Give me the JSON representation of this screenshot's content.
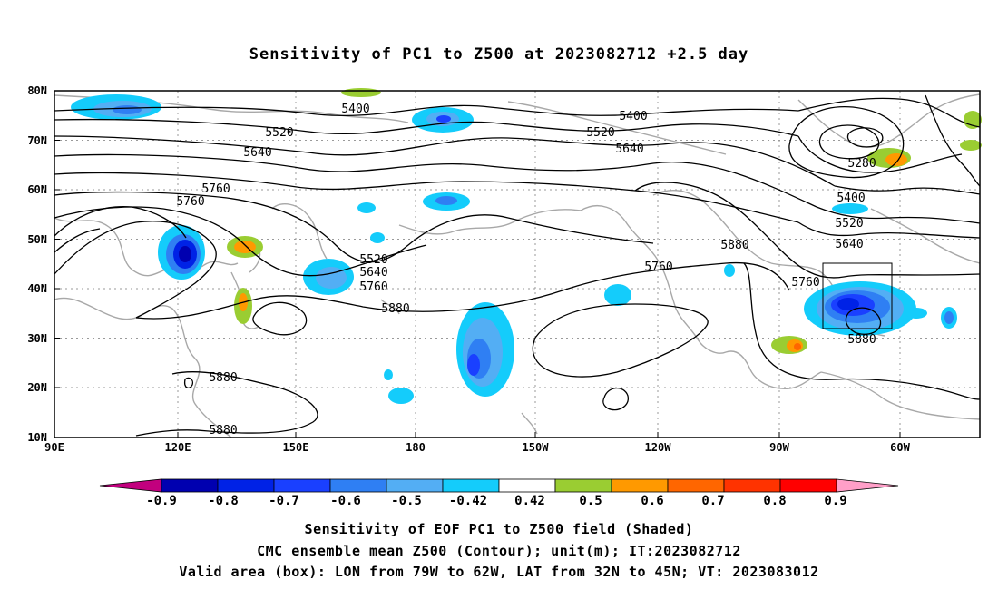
{
  "title": "Sensitivity of PC1 to Z500 at 2023082712 +2.5 day",
  "map": {
    "lat_labels": [
      "80N",
      "70N",
      "60N",
      "50N",
      "40N",
      "30N",
      "20N",
      "10N"
    ],
    "lon_labels": [
      "90E",
      "120E",
      "150E",
      "180",
      "150W",
      "120W",
      "90W",
      "60W"
    ],
    "contour_labels": [
      "5400",
      "5520",
      "5640",
      "5760",
      "5760",
      "5520",
      "5640",
      "5760",
      "5880",
      "5400",
      "5520",
      "5640",
      "5760",
      "5880",
      "5280",
      "5400",
      "5520",
      "5640",
      "5760",
      "5880",
      "5880",
      "5880"
    ],
    "valid_box": {
      "lon_from": "79W",
      "lon_to": "62W",
      "lat_from": "32N",
      "lat_to": "45N"
    }
  },
  "colorbar": {
    "labels": [
      "-0.9",
      "-0.8",
      "-0.7",
      "-0.6",
      "-0.5",
      "-0.42",
      "0.42",
      "0.5",
      "0.6",
      "0.7",
      "0.8",
      "0.9"
    ],
    "colors": [
      "#c2007e",
      "#0000b0",
      "#0022e6",
      "#1a40ff",
      "#2f7ff3",
      "#53aef4",
      "#14ccfb",
      "#ffffff",
      "#9acd32",
      "#ff9900",
      "#ff6600",
      "#ff3300",
      "#ff0000",
      "#ff9fc8"
    ]
  },
  "captions": [
    "Sensitivity of EOF PC1 to Z500 field (Shaded)",
    "CMC ensemble mean Z500 (Contour); unit(m); IT:2023082712",
    "Valid area (box): LON from 79W to 62W, LAT from 32N to 45N; VT: 2023083012"
  ]
}
